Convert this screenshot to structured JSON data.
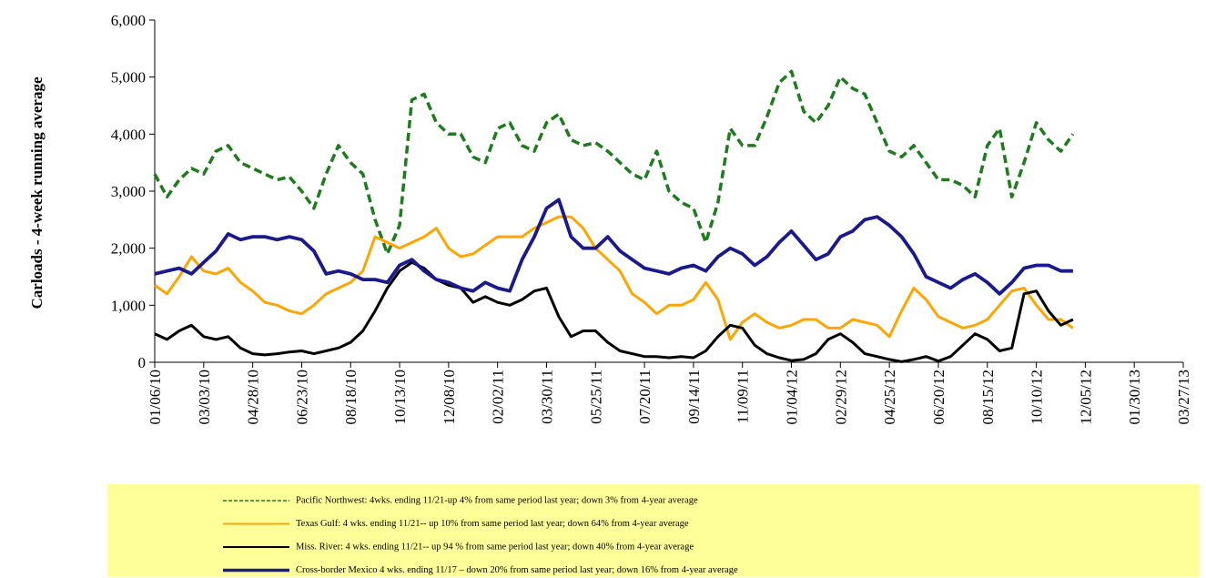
{
  "chart_data": {
    "type": "line",
    "ylabel": "Carloads  - 4-week running average",
    "categories": [
      "01/06/10",
      null,
      null,
      null,
      "03/03/10",
      null,
      null,
      null,
      "04/28/10",
      null,
      null,
      null,
      "06/23/10",
      null,
      null,
      null,
      "08/18/10",
      null,
      null,
      null,
      "10/13/10",
      null,
      null,
      null,
      "12/08/10",
      null,
      null,
      null,
      "02/02/11",
      null,
      null,
      null,
      "03/30/11",
      null,
      null,
      null,
      "05/25/11",
      null,
      null,
      null,
      "07/20/11",
      null,
      null,
      null,
      "09/14/11",
      null,
      null,
      null,
      "11/09/11",
      null,
      null,
      null,
      "01/04/12",
      null,
      null,
      null,
      "02/29/12",
      null,
      null,
      null,
      "04/25/12",
      null,
      null,
      null,
      "06/20/12",
      null,
      null,
      null,
      "08/15/12",
      null,
      null,
      null,
      "10/10/12",
      null,
      null,
      null,
      "12/05/12",
      null,
      null,
      null,
      "01/30/13",
      null,
      null,
      null,
      "03/27/13"
    ],
    "ylim": [
      0,
      6000
    ],
    "yticks": [
      0,
      {
        "value": 1000,
        "label": "1,000"
      },
      {
        "value": 2000,
        "label": "2,000"
      },
      {
        "value": 3000,
        "label": "3,000"
      },
      {
        "value": 4000,
        "label": "4,000"
      },
      {
        "value": 5000,
        "label": "5,000"
      },
      {
        "value": 6000,
        "label": "6,000"
      }
    ],
    "legend_background": "#ffff99",
    "series": [
      {
        "name": "Pacific Northwest:  4wks. ending 11/21-up 4% from same period last year; down 3% from 4-year average",
        "color": "#1e7b1e",
        "dash": "dashed",
        "values": [
          3300,
          2900,
          3200,
          3400,
          3300,
          3700,
          3800,
          3500,
          3400,
          3300,
          3200,
          3250,
          3000,
          2700,
          3300,
          3800,
          3500,
          3300,
          2500,
          1900,
          2400,
          4600,
          4700,
          4200,
          4000,
          4000,
          3600,
          3500,
          4100,
          4200,
          3800,
          3700,
          4200,
          4350,
          3900,
          3800,
          3850,
          3700,
          3500,
          3300,
          3200,
          3700,
          3000,
          2800,
          2700,
          2100,
          2800,
          4100,
          3800,
          3800,
          4300,
          4900,
          5100,
          4400,
          4200,
          4500,
          5000,
          4800,
          4700,
          4200,
          3700,
          3600,
          3800,
          3500,
          3200,
          3200,
          3100,
          2900,
          3800,
          4100,
          2900,
          3500,
          4200,
          3900,
          3700,
          4000,
          null,
          null,
          null,
          null,
          null,
          null,
          null,
          null,
          null
        ]
      },
      {
        "name": "Texas Gulf:  4 wks. ending 11/21-- up 10% from same period last year; down 64% from 4-year average",
        "color": "#ffa500",
        "dash": "solid",
        "values": [
          1350,
          1200,
          1500,
          1850,
          1600,
          1550,
          1650,
          1400,
          1250,
          1050,
          1000,
          900,
          850,
          1000,
          1200,
          1300,
          1400,
          1600,
          2200,
          2100,
          2000,
          2100,
          2200,
          2350,
          2000,
          1850,
          1900,
          2050,
          2200,
          2200,
          2200,
          2350,
          2450,
          2550,
          2550,
          2350,
          2000,
          1800,
          1600,
          1200,
          1050,
          850,
          1000,
          1000,
          1100,
          1400,
          1100,
          400,
          700,
          850,
          700,
          600,
          650,
          750,
          750,
          600,
          600,
          750,
          700,
          650,
          450,
          900,
          1300,
          1100,
          800,
          700,
          600,
          650,
          750,
          1000,
          1250,
          1300,
          1000,
          750,
          750,
          600,
          null,
          null,
          null,
          null,
          null,
          null,
          null,
          null,
          null
        ]
      },
      {
        "name": "Miss. River: 4 wks. ending 11/21-- up 94 % from same period last year; down 40% from 4-year average",
        "color": "#000000",
        "dash": "solid",
        "values": [
          500,
          400,
          550,
          650,
          450,
          400,
          450,
          250,
          150,
          130,
          150,
          180,
          200,
          150,
          200,
          250,
          350,
          550,
          900,
          1300,
          1600,
          1750,
          1650,
          1450,
          1350,
          1300,
          1050,
          1150,
          1050,
          1000,
          1100,
          1250,
          1300,
          800,
          450,
          550,
          550,
          350,
          200,
          150,
          100,
          100,
          80,
          100,
          80,
          200,
          450,
          650,
          600,
          300,
          150,
          80,
          30,
          50,
          150,
          400,
          500,
          350,
          150,
          100,
          50,
          10,
          50,
          100,
          20,
          100,
          300,
          500,
          400,
          200,
          250,
          1200,
          1250,
          900,
          650,
          750,
          null,
          null,
          null,
          null,
          null,
          null,
          null,
          null,
          null
        ]
      },
      {
        "name": "Cross-border Mexico 4 wks. ending 11/17 – down 20% from same period last year; down 16% from 4-year average",
        "color": "#1a1a8c",
        "dash": "solid",
        "values": [
          1550,
          1600,
          1650,
          1550,
          1750,
          1950,
          2250,
          2150,
          2200,
          2200,
          2150,
          2200,
          2150,
          1950,
          1550,
          1600,
          1550,
          1450,
          1450,
          1400,
          1700,
          1800,
          1600,
          1450,
          1400,
          1300,
          1250,
          1400,
          1300,
          1250,
          1800,
          2200,
          2700,
          2850,
          2200,
          2000,
          2000,
          2200,
          1950,
          1800,
          1650,
          1600,
          1550,
          1650,
          1700,
          1600,
          1850,
          2000,
          1900,
          1700,
          1850,
          2100,
          2300,
          2050,
          1800,
          1900,
          2200,
          2300,
          2500,
          2550,
          2400,
          2200,
          1900,
          1500,
          1400,
          1300,
          1450,
          1550,
          1400,
          1200,
          1400,
          1650,
          1700,
          1700,
          1600,
          1600,
          null,
          null,
          null,
          null,
          null,
          null,
          null,
          null,
          null
        ]
      }
    ]
  }
}
